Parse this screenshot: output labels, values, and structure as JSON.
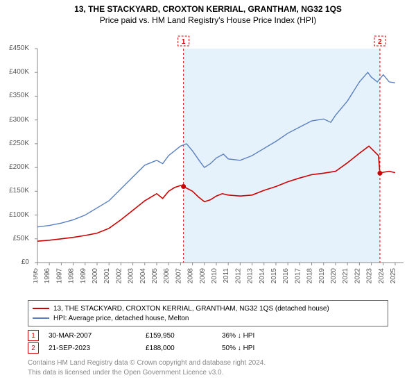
{
  "title_line1": "13, THE STACKYARD, CROXTON KERRIAL, GRANTHAM, NG32 1QS",
  "title_line2": "Price paid vs. HM Land Registry's House Price Index (HPI)",
  "chart": {
    "type": "line",
    "background_color": "#ffffff",
    "shaded_band_color": "#e6f2fb",
    "shaded_band_x": [
      2007.25,
      2023.72
    ],
    "xlim": [
      1995,
      2025.7
    ],
    "ylim": [
      0,
      450000
    ],
    "ytick_step": 50000,
    "ytick_labels": [
      "£0",
      "£50K",
      "£100K",
      "£150K",
      "£200K",
      "£250K",
      "£300K",
      "£350K",
      "£400K",
      "£450K"
    ],
    "xtick_years": [
      1995,
      1996,
      1997,
      1998,
      1999,
      2000,
      2001,
      2002,
      2003,
      2004,
      2005,
      2006,
      2007,
      2008,
      2009,
      2010,
      2011,
      2012,
      2013,
      2014,
      2015,
      2016,
      2017,
      2018,
      2019,
      2020,
      2021,
      2022,
      2023,
      2024,
      2025
    ],
    "series": [
      {
        "name": "price_paid",
        "label": "13, THE STACKYARD, CROXTON KERRIAL, GRANTHAM, NG32 1QS (detached house)",
        "color": "#cc0000",
        "line_width": 1.6,
        "points": [
          [
            1995,
            45000
          ],
          [
            1996,
            47000
          ],
          [
            1997,
            50000
          ],
          [
            1998,
            53000
          ],
          [
            1999,
            57000
          ],
          [
            2000,
            62000
          ],
          [
            2001,
            72000
          ],
          [
            2002,
            90000
          ],
          [
            2003,
            110000
          ],
          [
            2004,
            130000
          ],
          [
            2005,
            145000
          ],
          [
            2005.5,
            135000
          ],
          [
            2006,
            150000
          ],
          [
            2006.5,
            158000
          ],
          [
            2007,
            162000
          ],
          [
            2007.25,
            159950
          ],
          [
            2008,
            150000
          ],
          [
            2008.5,
            138000
          ],
          [
            2009,
            128000
          ],
          [
            2009.5,
            132000
          ],
          [
            2010,
            140000
          ],
          [
            2010.5,
            145000
          ],
          [
            2011,
            142000
          ],
          [
            2012,
            140000
          ],
          [
            2013,
            142000
          ],
          [
            2014,
            152000
          ],
          [
            2015,
            160000
          ],
          [
            2016,
            170000
          ],
          [
            2017,
            178000
          ],
          [
            2018,
            185000
          ],
          [
            2019,
            188000
          ],
          [
            2020,
            192000
          ],
          [
            2021,
            210000
          ],
          [
            2022,
            230000
          ],
          [
            2022.8,
            245000
          ],
          [
            2023.2,
            235000
          ],
          [
            2023.6,
            225000
          ],
          [
            2023.72,
            188000
          ],
          [
            2024,
            190000
          ],
          [
            2024.5,
            192000
          ],
          [
            2025,
            189000
          ]
        ]
      },
      {
        "name": "hpi",
        "label": "HPI: Average price, detached house, Melton",
        "color": "#5a7fbf",
        "line_width": 1.4,
        "points": [
          [
            1995,
            75000
          ],
          [
            1996,
            78000
          ],
          [
            1997,
            83000
          ],
          [
            1998,
            90000
          ],
          [
            1999,
            100000
          ],
          [
            2000,
            115000
          ],
          [
            2001,
            130000
          ],
          [
            2002,
            155000
          ],
          [
            2003,
            180000
          ],
          [
            2004,
            205000
          ],
          [
            2005,
            215000
          ],
          [
            2005.5,
            208000
          ],
          [
            2006,
            225000
          ],
          [
            2007,
            245000
          ],
          [
            2007.5,
            250000
          ],
          [
            2008,
            235000
          ],
          [
            2008.7,
            210000
          ],
          [
            2009,
            200000
          ],
          [
            2009.5,
            208000
          ],
          [
            2010,
            220000
          ],
          [
            2010.6,
            228000
          ],
          [
            2011,
            218000
          ],
          [
            2012,
            215000
          ],
          [
            2012.7,
            222000
          ],
          [
            2013,
            225000
          ],
          [
            2014,
            240000
          ],
          [
            2015,
            255000
          ],
          [
            2016,
            272000
          ],
          [
            2017,
            285000
          ],
          [
            2018,
            298000
          ],
          [
            2019,
            302000
          ],
          [
            2019.6,
            295000
          ],
          [
            2020,
            310000
          ],
          [
            2021,
            340000
          ],
          [
            2022,
            380000
          ],
          [
            2022.7,
            400000
          ],
          [
            2023,
            390000
          ],
          [
            2023.5,
            380000
          ],
          [
            2024,
            395000
          ],
          [
            2024.5,
            380000
          ],
          [
            2025,
            378000
          ]
        ]
      }
    ],
    "markers": [
      {
        "n": "1",
        "x": 2007.25,
        "y": 159950,
        "dot_color": "#cc0000"
      },
      {
        "n": "2",
        "x": 2023.72,
        "y": 188000,
        "dot_color": "#cc0000"
      }
    ],
    "axis_color": "#888888"
  },
  "legend": {
    "series1_label": "13, THE STACKYARD, CROXTON KERRIAL, GRANTHAM, NG32 1QS (detached house)",
    "series2_label": "HPI: Average price, detached house, Melton",
    "series1_color": "#cc0000",
    "series2_color": "#5a7fbf"
  },
  "events": [
    {
      "n": "1",
      "date": "30-MAR-2007",
      "price": "£159,950",
      "delta": "36% ↓ HPI"
    },
    {
      "n": "2",
      "date": "21-SEP-2023",
      "price": "£188,000",
      "delta": "50% ↓ HPI"
    }
  ],
  "footer_line1": "Contains HM Land Registry data © Crown copyright and database right 2024.",
  "footer_line2": "This data is licensed under the Open Government Licence v3.0."
}
